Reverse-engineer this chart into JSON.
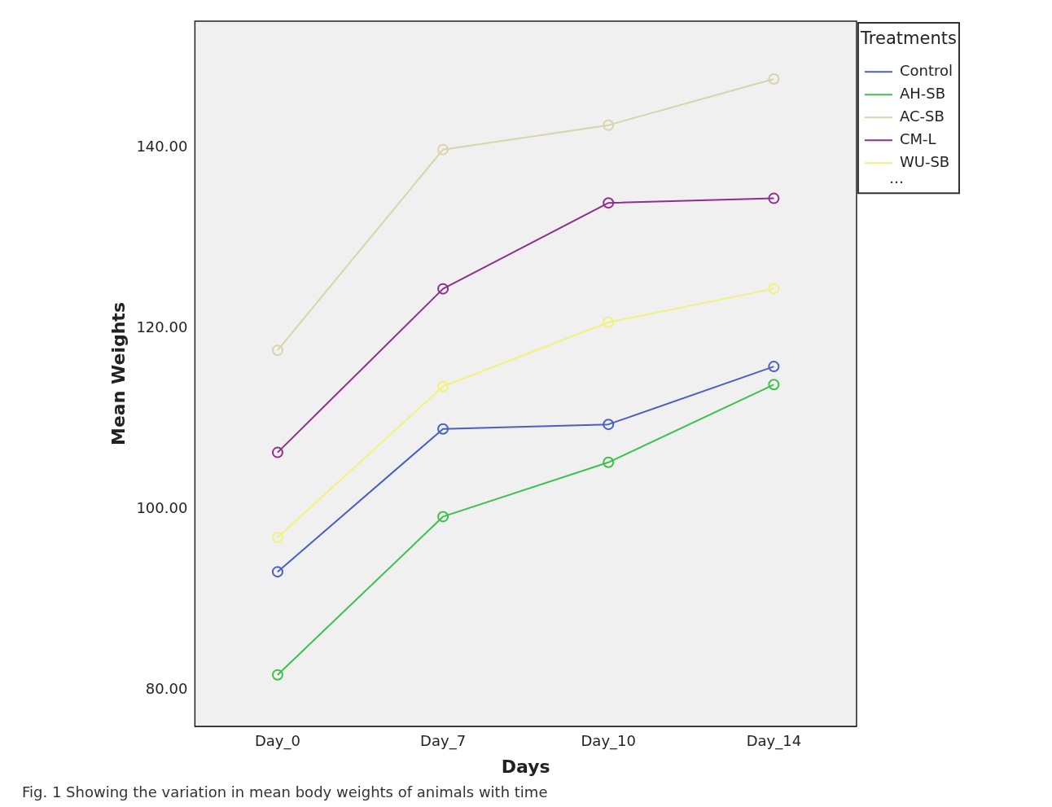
{
  "chart_data": {
    "type": "line",
    "xlabel": "Days",
    "ylabel": "Mean Weights",
    "legend_title": "Treatments",
    "categories": [
      "Day_0",
      "Day_7",
      "Day_10",
      "Day_14"
    ],
    "series": [
      {
        "name": "Control",
        "color": "#4a5fbf",
        "values": [
          93.1,
          108.9,
          109.4,
          115.8
        ]
      },
      {
        "name": "AH-SB",
        "color": "#3cc24a",
        "values": [
          81.7,
          99.2,
          105.2,
          113.8
        ]
      },
      {
        "name": "AC-SB",
        "color": "#d8d5a8",
        "values": [
          117.6,
          139.8,
          142.5,
          147.6
        ]
      },
      {
        "name": "CM-L",
        "color": "#8e2f8e",
        "values": [
          106.3,
          124.4,
          133.9,
          134.4
        ]
      },
      {
        "name": "WU-SB",
        "color": "#f2f27a",
        "values": [
          96.9,
          113.6,
          120.7,
          124.4
        ]
      }
    ],
    "ylim": [
      76,
      154
    ],
    "yticks": [
      {
        "value": 80,
        "label": "80.00"
      },
      {
        "value": 100,
        "label": "100.00"
      },
      {
        "value": 120,
        "label": "120.00"
      },
      {
        "value": 140,
        "label": "140.00"
      }
    ],
    "grid": false,
    "legend": "top right",
    "marker": "circle",
    "line_style": "solid",
    "annotations": [
      "…",
      "Fig. 1  Showing the variation in mean body weights of animals with time"
    ]
  }
}
